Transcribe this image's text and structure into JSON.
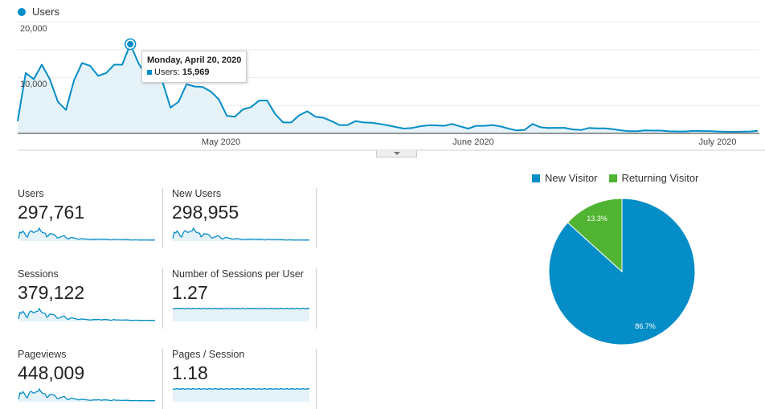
{
  "colors": {
    "primary": "#058dc7",
    "secondary": "#50b432",
    "fill": "#e5f3f9"
  },
  "chart_data": [
    {
      "type": "area",
      "title": "",
      "legend": [
        "Users"
      ],
      "ylim": [
        0,
        20000
      ],
      "y_ticks": [
        "20,000",
        "10,000"
      ],
      "x_tick_labels": [
        "May 2020",
        "June 2020",
        "July 2020"
      ],
      "x_start": "2020-04-06",
      "series": [
        {
          "name": "Users",
          "values": [
            2200,
            10800,
            9700,
            12300,
            9700,
            5650,
            4200,
            9500,
            12600,
            12100,
            10300,
            10800,
            12300,
            12300,
            15969,
            12600,
            10200,
            9800,
            9250,
            4600,
            5650,
            8800,
            8400,
            8300,
            7500,
            6100,
            3150,
            3000,
            4300,
            4700,
            5850,
            5900,
            3500,
            1950,
            1950,
            3250,
            3950,
            3000,
            2800,
            2200,
            1500,
            1500,
            2200,
            1950,
            1900,
            1700,
            1440,
            1150,
            860,
            960,
            1250,
            1440,
            1440,
            1350,
            1680,
            1250,
            860,
            1350,
            1350,
            1500,
            1250,
            860,
            530,
            600,
            1680,
            1100,
            960,
            1000,
            1000,
            700,
            600,
            960,
            900,
            900,
            750,
            550,
            400,
            400,
            550,
            500,
            500,
            380,
            350,
            350,
            450,
            420,
            420,
            350,
            300,
            290,
            300,
            350,
            450
          ]
        }
      ],
      "tooltip": {
        "date": "Monday, April 20, 2020",
        "metric": "Users:",
        "value": "15,969"
      }
    },
    {
      "type": "pie",
      "legend": [
        "New Visitor",
        "Returning Visitor"
      ],
      "slices": [
        {
          "name": "New Visitor",
          "value": 86.7,
          "label": "86.7%"
        },
        {
          "name": "Returning Visitor",
          "value": 13.3,
          "label": "13.3%"
        }
      ]
    }
  ],
  "metrics": [
    {
      "label": "Users",
      "value": "297,761",
      "spark": "trend"
    },
    {
      "label": "New Users",
      "value": "298,955",
      "spark": "trend"
    },
    {
      "label": "Sessions",
      "value": "379,122",
      "spark": "trend"
    },
    {
      "label": "Number of Sessions per User",
      "value": "1.27",
      "spark": "flat"
    },
    {
      "label": "Pageviews",
      "value": "448,009",
      "spark": "trend"
    },
    {
      "label": "Pages / Session",
      "value": "1.18",
      "spark": "flat"
    }
  ]
}
